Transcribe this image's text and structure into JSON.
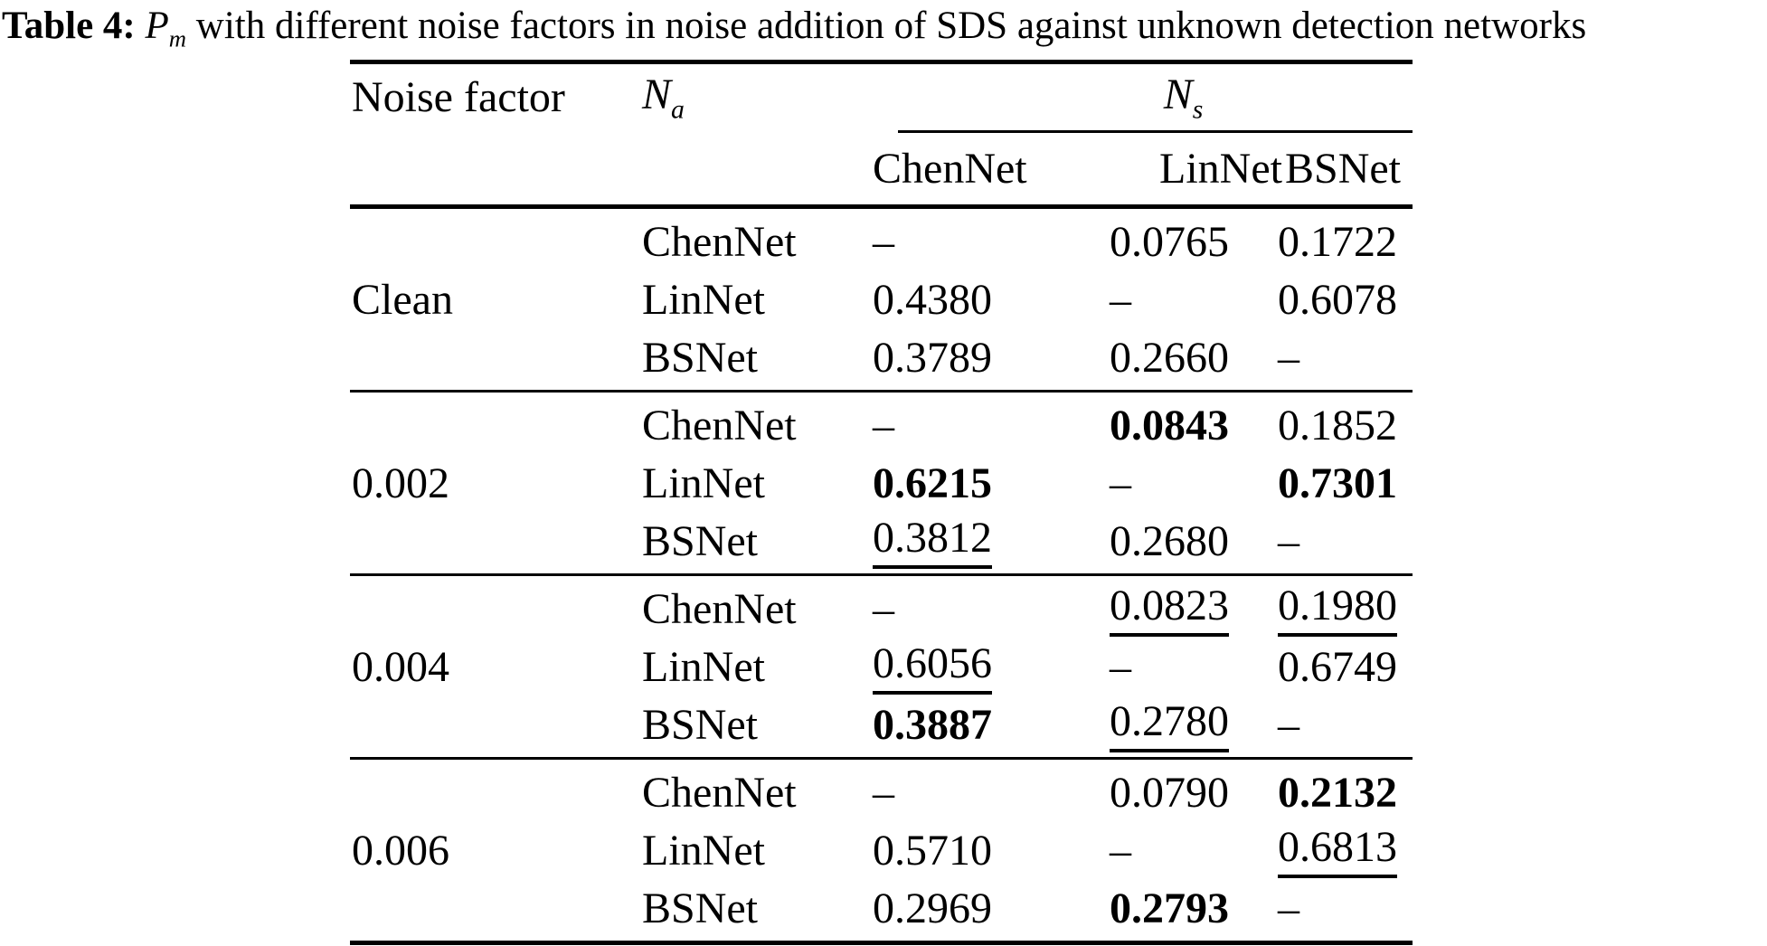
{
  "caption": {
    "prefix": "Table 4: ",
    "variable": "P",
    "subscript": "m",
    "rest": " with different noise factors in noise addition of SDS against unknown detection networks"
  },
  "header": {
    "col_noise_factor": "Noise factor",
    "na": {
      "base": "N",
      "sub": "a"
    },
    "ns": {
      "base": "N",
      "sub": "s"
    },
    "networks": [
      "ChenNet",
      "LinNet",
      "BSNet"
    ]
  },
  "table": {
    "groups": [
      {
        "label": "Clean",
        "rows": [
          {
            "net": "ChenNet",
            "c1": "–",
            "c2": "0.0765",
            "c3": "0.1722"
          },
          {
            "net": "LinNet",
            "c1": "0.4380",
            "c2": "–",
            "c3": "0.6078"
          },
          {
            "net": "BSNet",
            "c1": "0.3789",
            "c2": "0.2660",
            "c3": "–"
          }
        ]
      },
      {
        "label": "0.002",
        "rows": [
          {
            "net": "ChenNet",
            "c1": "–",
            "c2": "0.0843",
            "s2": "b",
            "c3": "0.1852"
          },
          {
            "net": "LinNet",
            "c1": "0.6215",
            "s1": "b",
            "c2": "–",
            "c3": "0.7301",
            "s3": "b"
          },
          {
            "net": "BSNet",
            "c1": "0.3812",
            "s1": "u",
            "c2": "0.2680",
            "c3": "–"
          }
        ]
      },
      {
        "label": "0.004",
        "rows": [
          {
            "net": "ChenNet",
            "c1": "–",
            "c2": "0.0823",
            "s2": "u",
            "c3": "0.1980",
            "s3": "u"
          },
          {
            "net": "LinNet",
            "c1": "0.6056",
            "s1": "u",
            "c2": "–",
            "c3": "0.6749"
          },
          {
            "net": "BSNet",
            "c1": "0.3887",
            "s1": "b",
            "c2": "0.2780",
            "s2": "u",
            "c3": "–"
          }
        ]
      },
      {
        "label": "0.006",
        "rows": [
          {
            "net": "ChenNet",
            "c1": "–",
            "c2": "0.0790",
            "c3": "0.2132",
            "s3": "b"
          },
          {
            "net": "LinNet",
            "c1": "0.5710",
            "c2": "–",
            "c3": "0.6813",
            "s3": "u"
          },
          {
            "net": "BSNet",
            "c1": "0.2969",
            "c2": "0.2793",
            "s2": "b",
            "c3": "–"
          }
        ]
      }
    ]
  }
}
